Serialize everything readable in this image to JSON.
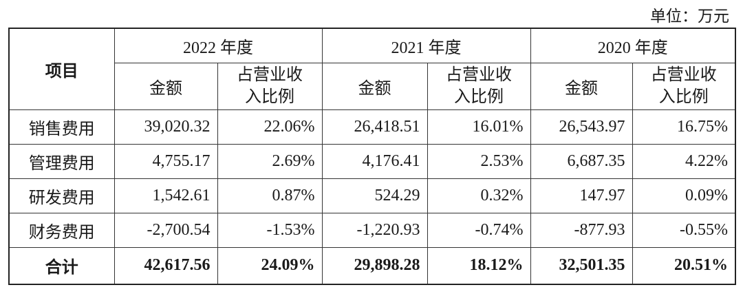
{
  "unit": "单位：万元",
  "table": {
    "item_header": "项目",
    "columns": [
      {
        "year": "2022 年度",
        "amount": "金额",
        "ratio": "占营业收入比例"
      },
      {
        "year": "2021 年度",
        "amount": "金额",
        "ratio": "占营业收入比例"
      },
      {
        "year": "2020 年度",
        "amount": "金额",
        "ratio": "占营业收入比例"
      }
    ],
    "rows": [
      {
        "label": "销售费用",
        "cells": [
          "39,020.32",
          "22.06%",
          "26,418.51",
          "16.01%",
          "26,543.97",
          "16.75%"
        ]
      },
      {
        "label": "管理费用",
        "cells": [
          "4,755.17",
          "2.69%",
          "4,176.41",
          "2.53%",
          "6,687.35",
          "4.22%"
        ]
      },
      {
        "label": "研发费用",
        "cells": [
          "1,542.61",
          "0.87%",
          "524.29",
          "0.32%",
          "147.97",
          "0.09%"
        ]
      },
      {
        "label": "财务费用",
        "cells": [
          "-2,700.54",
          "-1.53%",
          "-1,220.93",
          "-0.74%",
          "-877.93",
          "-0.55%"
        ]
      },
      {
        "label": "合计",
        "cells": [
          "42,617.56",
          "24.09%",
          "29,898.28",
          "18.12%",
          "32,501.35",
          "20.51%"
        ],
        "bold": true
      }
    ]
  }
}
